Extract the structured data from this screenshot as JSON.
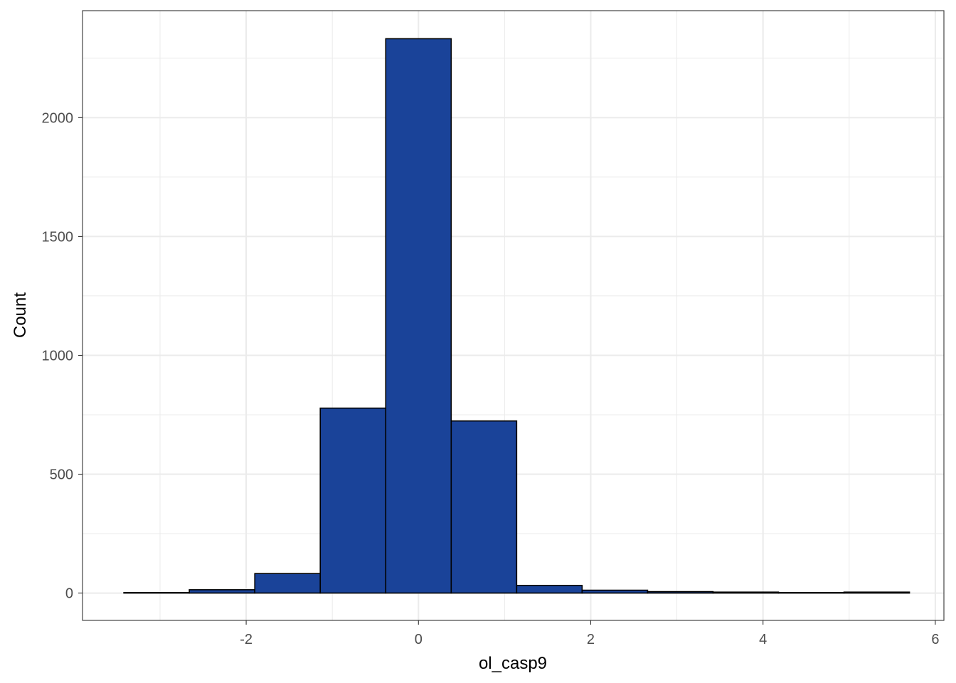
{
  "chart_data": {
    "type": "bar",
    "title": "",
    "xlabel": "ol_casp9",
    "ylabel": "Count",
    "bin_edges": [
      -3.42,
      -2.66,
      -1.9,
      -1.14,
      -0.38,
      0.38,
      1.14,
      1.9,
      2.66,
      3.42,
      4.18,
      4.94,
      5.7
    ],
    "values": [
      2,
      14,
      82,
      778,
      2332,
      724,
      32,
      12,
      6,
      4,
      2,
      4
    ],
    "xlim": [
      -3.9,
      6.1
    ],
    "ylim": [
      -115,
      2450
    ],
    "x_ticks": [
      -2,
      0,
      2,
      4,
      6
    ],
    "y_ticks": [
      0,
      500,
      1000,
      1500,
      2000
    ],
    "x_tick_labels": [
      "-2",
      "0",
      "2",
      "4",
      "6"
    ],
    "y_tick_labels": [
      "0",
      "500",
      "1000",
      "1500",
      "2000"
    ],
    "grid": true,
    "fill_color": "#1a4399",
    "edge_color": "#000000"
  }
}
